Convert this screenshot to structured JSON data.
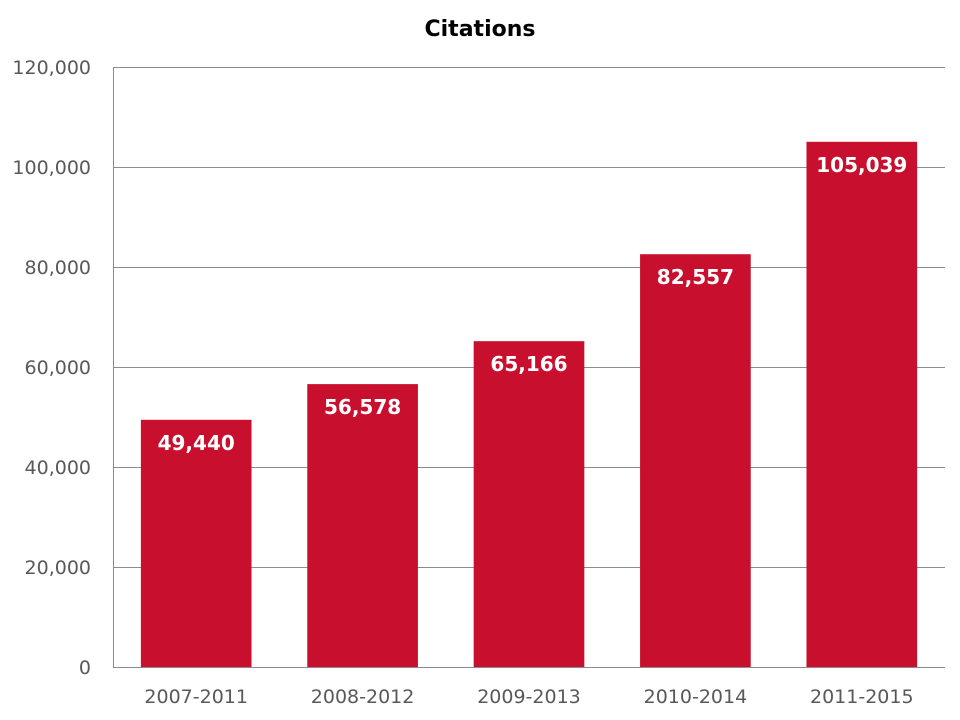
{
  "chart_data": {
    "type": "bar",
    "title": "Citations",
    "xlabel": "",
    "ylabel": "",
    "categories": [
      "2007-2011",
      "2008-2012",
      "2009-2013",
      "2010-2014",
      "2011-2015"
    ],
    "values": [
      49440,
      56578,
      65166,
      82557,
      105039
    ],
    "value_labels": [
      "49,440",
      "56,578",
      "65,166",
      "82,557",
      "105,039"
    ],
    "ylim": [
      0,
      120000
    ],
    "y_ticks": [
      0,
      20000,
      40000,
      60000,
      80000,
      100000,
      120000
    ],
    "y_tick_labels": [
      "0",
      "20,000",
      "40,000",
      "60,000",
      "80,000",
      "100,000",
      "120,000"
    ],
    "grid": true,
    "legend": "none",
    "colors": {
      "bar": "#c8102e",
      "gridline": "#8c8c8c",
      "tick_text": "#595959",
      "data_label_text": "#ffffff",
      "title_text": "#000000"
    }
  }
}
